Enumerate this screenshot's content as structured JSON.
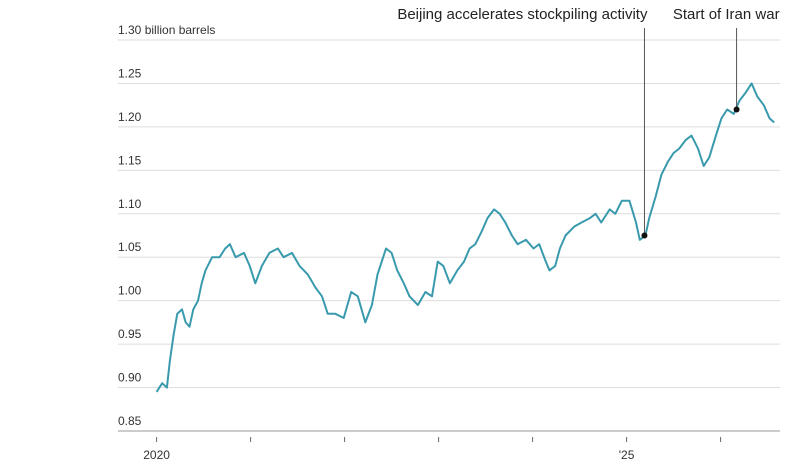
{
  "chart_data": {
    "type": "line",
    "x": [
      2020.0,
      2020.06,
      2020.11,
      2020.14,
      2020.18,
      2020.22,
      2020.27,
      2020.31,
      2020.35,
      2020.39,
      2020.44,
      2020.48,
      2020.52,
      2020.59,
      2020.67,
      2020.73,
      2020.78,
      2020.84,
      2020.93,
      2020.99,
      2021.05,
      2021.12,
      2021.2,
      2021.29,
      2021.35,
      2021.44,
      2021.52,
      2021.61,
      2021.69,
      2021.76,
      2021.82,
      2021.9,
      2021.99,
      2022.07,
      2022.14,
      2022.22,
      2022.29,
      2022.35,
      2022.44,
      2022.5,
      2022.56,
      2022.63,
      2022.69,
      2022.78,
      2022.86,
      2022.93,
      2022.99,
      2023.05,
      2023.12,
      2023.2,
      2023.27,
      2023.33,
      2023.39,
      2023.46,
      2023.52,
      2023.59,
      2023.65,
      2023.71,
      2023.78,
      2023.84,
      2023.93,
      2024.01,
      2024.07,
      2024.14,
      2024.18,
      2024.24,
      2024.29,
      2024.35,
      2024.44,
      2024.52,
      2024.61,
      2024.67,
      2024.73,
      2024.82,
      2024.88,
      2024.95,
      2025.03,
      2025.1,
      2025.14,
      2025.2,
      2025.24,
      2025.31,
      2025.37,
      2025.44,
      2025.5,
      2025.56,
      2025.63,
      2025.69,
      2025.76,
      2025.82,
      2025.88,
      2025.95,
      2026.01,
      2026.07,
      2026.14,
      2026.2,
      2026.27,
      2026.33,
      2026.39,
      2026.46,
      2026.52,
      2026.57
    ],
    "series": [
      {
        "color": "#3a9aad",
        "values": [
          0.895,
          0.905,
          0.9,
          0.93,
          0.96,
          0.985,
          0.99,
          0.975,
          0.97,
          0.99,
          1.0,
          1.02,
          1.035,
          1.05,
          1.05,
          1.06,
          1.065,
          1.05,
          1.055,
          1.04,
          1.02,
          1.04,
          1.055,
          1.06,
          1.05,
          1.055,
          1.04,
          1.03,
          1.015,
          1.005,
          0.985,
          0.985,
          0.98,
          1.01,
          1.005,
          0.975,
          0.995,
          1.03,
          1.06,
          1.055,
          1.035,
          1.02,
          1.005,
          0.995,
          1.01,
          1.005,
          1.045,
          1.04,
          1.02,
          1.035,
          1.045,
          1.06,
          1.065,
          1.08,
          1.095,
          1.105,
          1.1,
          1.09,
          1.075,
          1.065,
          1.07,
          1.06,
          1.065,
          1.045,
          1.035,
          1.04,
          1.06,
          1.075,
          1.085,
          1.09,
          1.095,
          1.1,
          1.09,
          1.105,
          1.1,
          1.115,
          1.115,
          1.09,
          1.07,
          1.075,
          1.095,
          1.12,
          1.145,
          1.16,
          1.17,
          1.175,
          1.185,
          1.19,
          1.175,
          1.155,
          1.165,
          1.19,
          1.21,
          1.22,
          1.215,
          1.23,
          1.24,
          1.25,
          1.235,
          1.225,
          1.21,
          1.205
        ]
      }
    ],
    "xlim": [
      2019.6,
      2026.6
    ],
    "xticks": [
      2020,
      {
        "value": 2021,
        "label": null
      },
      {
        "value": 2022,
        "label": null
      },
      {
        "value": 2023,
        "label": null
      },
      {
        "value": 2024,
        "label": null
      },
      {
        "value": 2025,
        "label": "'25"
      },
      {
        "value": 2026,
        "label": null
      }
    ],
    "ylim": [
      0.85,
      1.3
    ],
    "yticks": [
      0.85,
      {
        "value": 0.9,
        "label": "0.90"
      },
      0.95,
      {
        "value": 1.0,
        "label": "1.00"
      },
      1.05,
      {
        "value": 1.1,
        "label": "1.10"
      },
      1.15,
      {
        "value": 1.2,
        "label": "1.20"
      },
      1.25,
      {
        "value": 1.3,
        "label": "1.30 billion barrels"
      }
    ],
    "grid": true,
    "annotations": [
      {
        "text": "Beijing accelerates stockpiling activity",
        "x": 2025.19,
        "y": 1.075
      },
      {
        "text": "Start of Iran war",
        "x": 2026.17,
        "y": 1.22
      }
    ]
  }
}
